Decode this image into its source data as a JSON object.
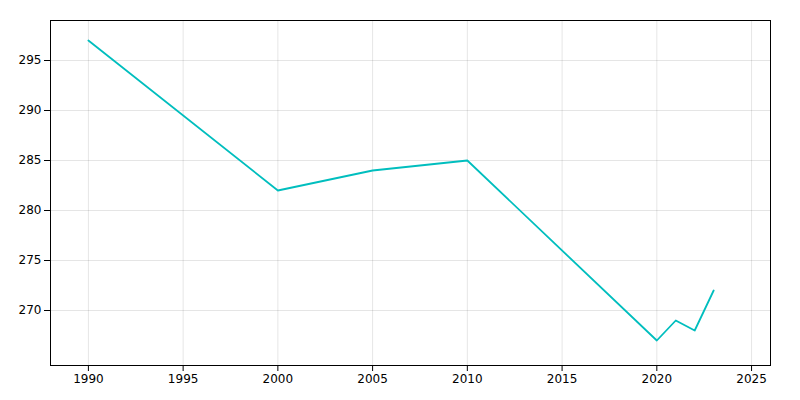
{
  "chart_data": {
    "type": "line",
    "x": [
      1990,
      2000,
      2005,
      2010,
      2020,
      2021,
      2022,
      2023
    ],
    "values": [
      297,
      282,
      284,
      285,
      267,
      269,
      268,
      272
    ],
    "color": "#00BEBE",
    "xlim": [
      1988,
      2026
    ],
    "xticks": [
      1990,
      1995,
      2000,
      2005,
      2010,
      2015,
      2020,
      2025
    ],
    "ylim": [
      264.5,
      299
    ],
    "yticks": [
      270,
      275,
      280,
      285,
      290,
      295
    ],
    "grid": true
  }
}
